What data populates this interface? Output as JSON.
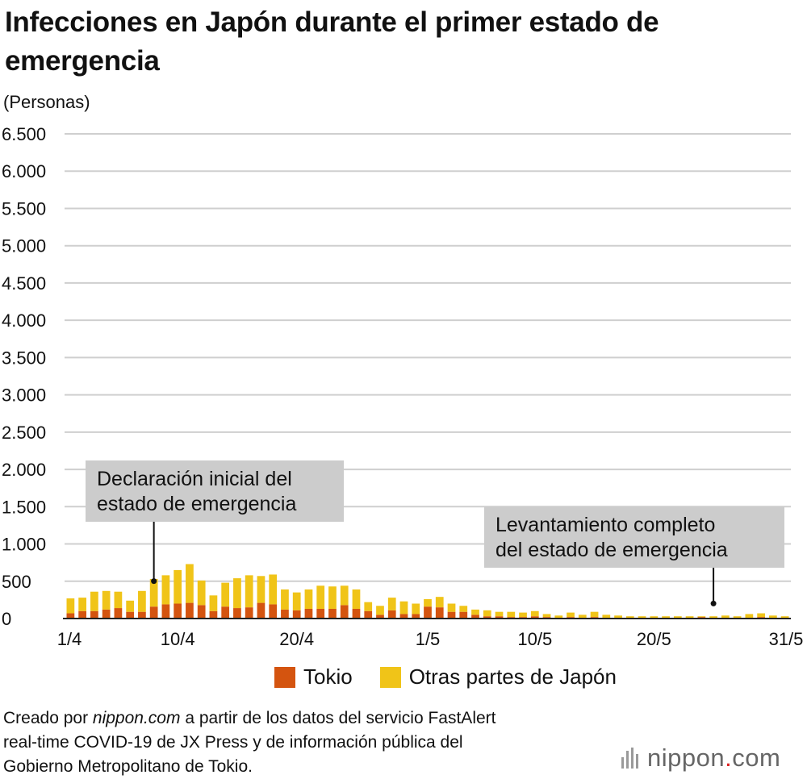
{
  "title": "Infecciones en Japón durante el primer estado de emergencia",
  "colors": {
    "tokyo": "#d4540f",
    "other": "#f0c418",
    "grid": "#cfcfcf",
    "annotation_bg": "#cccccc"
  },
  "chart_data": {
    "type": "bar",
    "stacked": true,
    "title": "Infecciones en Japón durante el primer estado de emergencia",
    "ylabel": "(Personas)",
    "xlabel": "",
    "ylim": [
      0,
      6500
    ],
    "yticks": [
      0,
      500,
      1000,
      1500,
      2000,
      2500,
      3000,
      3500,
      4000,
      4500,
      5000,
      5500,
      6000,
      6500
    ],
    "ytick_labels": [
      "0",
      "500",
      "1.000",
      "1.500",
      "2.000",
      "2.500",
      "3.000",
      "3.500",
      "4.000",
      "4.500",
      "5.000",
      "5.500",
      "6.000",
      "6.500"
    ],
    "xtick_labels": [
      {
        "day_index": 0,
        "label": "1/4"
      },
      {
        "day_index": 9,
        "label": "10/4"
      },
      {
        "day_index": 19,
        "label": "20/4"
      },
      {
        "day_index": 30,
        "label": "1/5"
      },
      {
        "day_index": 39,
        "label": "10/5"
      },
      {
        "day_index": 49,
        "label": "20/5"
      },
      {
        "day_index": 60,
        "label": "31/5"
      }
    ],
    "series": [
      {
        "name": "Tokio",
        "values": [
          70,
          100,
          100,
          120,
          140,
          90,
          90,
          160,
          190,
          200,
          210,
          180,
          100,
          160,
          140,
          150,
          210,
          190,
          120,
          110,
          130,
          130,
          130,
          180,
          130,
          100,
          50,
          110,
          60,
          60,
          160,
          150,
          90,
          90,
          50,
          30,
          30,
          20,
          20,
          30,
          20,
          10,
          20,
          10,
          20,
          10,
          10,
          10,
          10,
          10,
          10,
          10,
          10,
          20,
          10,
          10,
          10,
          10,
          20,
          10,
          10
        ]
      },
      {
        "name": "Otras partes de Japón",
        "values": [
          200,
          180,
          260,
          250,
          220,
          150,
          280,
          370,
          390,
          450,
          520,
          330,
          210,
          320,
          400,
          430,
          360,
          400,
          270,
          240,
          260,
          310,
          300,
          260,
          260,
          120,
          120,
          170,
          170,
          140,
          100,
          140,
          110,
          80,
          70,
          80,
          60,
          70,
          60,
          70,
          40,
          30,
          60,
          40,
          70,
          40,
          30,
          20,
          20,
          20,
          20,
          20,
          20,
          10,
          20,
          30,
          20,
          50,
          50,
          30,
          20
        ]
      }
    ],
    "annotations": [
      {
        "text_lines": [
          "Declaración inicial del",
          "estado de emergencia"
        ],
        "day_index": 7,
        "value": 350
      },
      {
        "text_lines": [
          "Levantamiento completo",
          "del estado de emergencia"
        ],
        "day_index": 54,
        "value": 50
      }
    ],
    "legend": "bottom-center"
  },
  "legend": [
    {
      "label": "Tokio",
      "color": "#d4540f"
    },
    {
      "label": "Otras partes de Japón",
      "color": "#f0c418"
    }
  ],
  "footer": {
    "line1_prefix": "Creado por ",
    "line1_em": "nippon.com",
    "line1_suffix": " a partir de los datos del servicio FastAlert",
    "line2": "real-time COVID-19 de JX Press y de información pública del",
    "line3": "Gobierno Metropolitano de Tokio."
  },
  "logo": {
    "name": "nippon",
    "dot": ".",
    "tld": "com"
  }
}
